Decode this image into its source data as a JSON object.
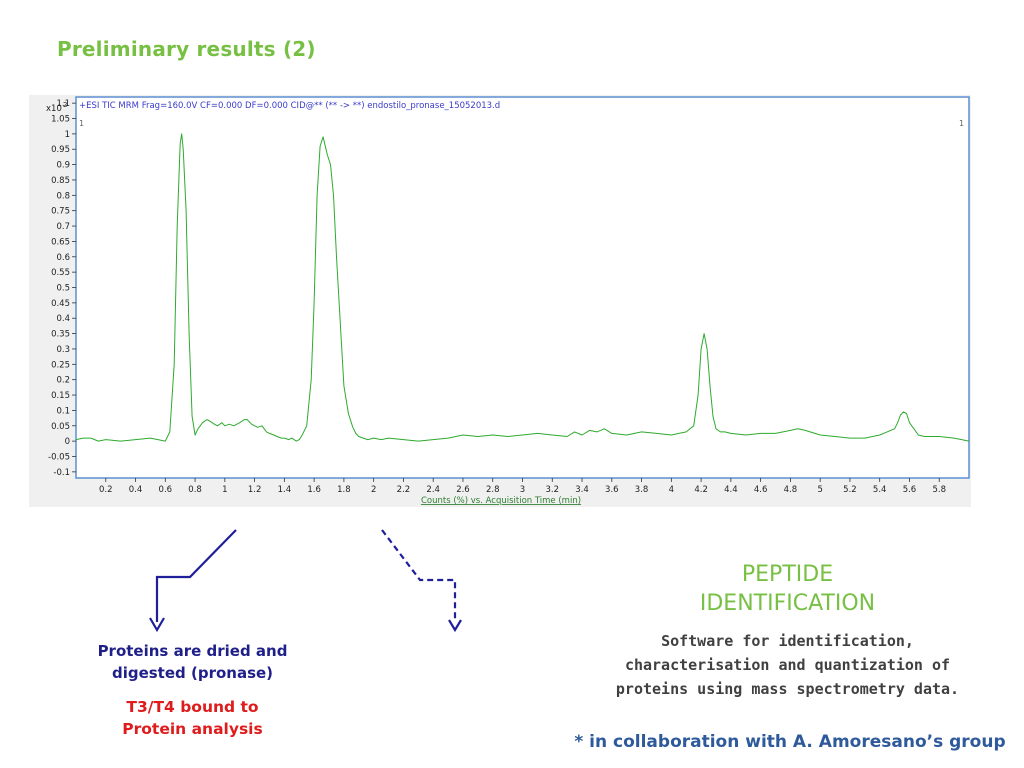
{
  "slide": {
    "title": "Preliminary results (2)"
  },
  "chart_data": {
    "type": "line",
    "header": "+ESI TIC MRM Frag=160.0V CF=0.000 DF=0.000 CID@** (** -> **) endostilo_pronase_15052013.d",
    "y_exponent_label": "x10",
    "y_exponent": "2",
    "corner_left_label": "1",
    "corner_right_label": "1",
    "xlabel": "Counts (%) vs. Acquisition Time (min)",
    "xlim": [
      0,
      6.0
    ],
    "ylim": [
      -0.12,
      1.12
    ],
    "x_ticks": [
      "0.2",
      "0.4",
      "0.6",
      "0.8",
      "1",
      "1.2",
      "1.4",
      "1.6",
      "1.8",
      "2",
      "2.2",
      "2.4",
      "2.6",
      "2.8",
      "3",
      "3.2",
      "3.4",
      "3.6",
      "3.8",
      "4",
      "4.2",
      "4.4",
      "4.6",
      "4.8",
      "5",
      "5.2",
      "5.4",
      "5.6",
      "5.8"
    ],
    "y_ticks": [
      "1.1",
      "1.05",
      "1",
      "0.95",
      "0.9",
      "0.85",
      "0.8",
      "0.75",
      "0.7",
      "0.65",
      "0.6",
      "0.55",
      "0.5",
      "0.45",
      "0.4",
      "0.35",
      "0.3",
      "0.25",
      "0.2",
      "0.15",
      "0.1",
      "0.05",
      "0",
      "-0.05",
      "-0.1"
    ],
    "line_color": "#2eaa2e",
    "series": [
      {
        "x": [
          0.0,
          0.05,
          0.1,
          0.15,
          0.2,
          0.3,
          0.4,
          0.5,
          0.55,
          0.6,
          0.63,
          0.66,
          0.68,
          0.7,
          0.71,
          0.72,
          0.74,
          0.76,
          0.78,
          0.8,
          0.82,
          0.85,
          0.88,
          0.9,
          0.93,
          0.95,
          0.98,
          1.0,
          1.03,
          1.06,
          1.1,
          1.13,
          1.15,
          1.18,
          1.2,
          1.22,
          1.25,
          1.28,
          1.3,
          1.33,
          1.35,
          1.38,
          1.4,
          1.43,
          1.45,
          1.48,
          1.5,
          1.52,
          1.55,
          1.58,
          1.6,
          1.62,
          1.64,
          1.66,
          1.68,
          1.69,
          1.71,
          1.73,
          1.75,
          1.78,
          1.8,
          1.83,
          1.86,
          1.88,
          1.9,
          1.93,
          1.96,
          2.0,
          2.05,
          2.1,
          2.2,
          2.3,
          2.4,
          2.5,
          2.6,
          2.7,
          2.8,
          2.9,
          3.0,
          3.1,
          3.2,
          3.3,
          3.35,
          3.4,
          3.45,
          3.5,
          3.55,
          3.6,
          3.7,
          3.8,
          3.9,
          4.0,
          4.1,
          4.15,
          4.18,
          4.2,
          4.22,
          4.24,
          4.26,
          4.28,
          4.3,
          4.33,
          4.36,
          4.4,
          4.5,
          4.6,
          4.7,
          4.75,
          4.8,
          4.85,
          4.9,
          5.0,
          5.1,
          5.2,
          5.3,
          5.4,
          5.45,
          5.5,
          5.52,
          5.54,
          5.56,
          5.58,
          5.6,
          5.63,
          5.66,
          5.7,
          5.8,
          5.9,
          6.0
        ],
        "y": [
          0.005,
          0.01,
          0.01,
          0.0,
          0.005,
          0.0,
          0.005,
          0.01,
          0.005,
          0.0,
          0.03,
          0.25,
          0.7,
          0.97,
          1.0,
          0.95,
          0.75,
          0.35,
          0.08,
          0.02,
          0.04,
          0.06,
          0.07,
          0.065,
          0.055,
          0.05,
          0.06,
          0.05,
          0.055,
          0.05,
          0.06,
          0.07,
          0.07,
          0.055,
          0.05,
          0.045,
          0.05,
          0.03,
          0.025,
          0.02,
          0.015,
          0.01,
          0.01,
          0.005,
          0.01,
          0.0,
          0.005,
          0.02,
          0.05,
          0.2,
          0.45,
          0.8,
          0.96,
          0.99,
          0.95,
          0.93,
          0.9,
          0.8,
          0.6,
          0.35,
          0.18,
          0.09,
          0.045,
          0.025,
          0.015,
          0.01,
          0.005,
          0.01,
          0.005,
          0.01,
          0.005,
          0.0,
          0.005,
          0.01,
          0.02,
          0.015,
          0.02,
          0.015,
          0.02,
          0.025,
          0.02,
          0.015,
          0.03,
          0.02,
          0.035,
          0.03,
          0.04,
          0.025,
          0.02,
          0.03,
          0.025,
          0.02,
          0.03,
          0.05,
          0.15,
          0.3,
          0.35,
          0.3,
          0.18,
          0.08,
          0.04,
          0.03,
          0.03,
          0.025,
          0.02,
          0.025,
          0.025,
          0.03,
          0.035,
          0.04,
          0.035,
          0.02,
          0.015,
          0.01,
          0.01,
          0.02,
          0.03,
          0.04,
          0.06,
          0.085,
          0.095,
          0.09,
          0.06,
          0.04,
          0.02,
          0.015,
          0.015,
          0.01,
          0.0
        ]
      }
    ]
  },
  "arrows": {
    "solid_color": "#1f1f9a",
    "dashed_color": "#1f1f9a"
  },
  "left_box": {
    "proteins_line1": "Proteins are dried and",
    "proteins_line2": "digested (pronase)",
    "t3t4_line1": "T3/T4 bound to",
    "t3t4_line2": "Protein analysis"
  },
  "right_box": {
    "peptide_line1": "PEPTIDE",
    "peptide_line2": "IDENTIFICATION",
    "desc_line1": "Software for identification,",
    "desc_line2": "characterisation and quantization of",
    "desc_line3": "proteins using mass spectrometry data.",
    "collab": "* in collaboration with A. Amoresano’s group"
  }
}
